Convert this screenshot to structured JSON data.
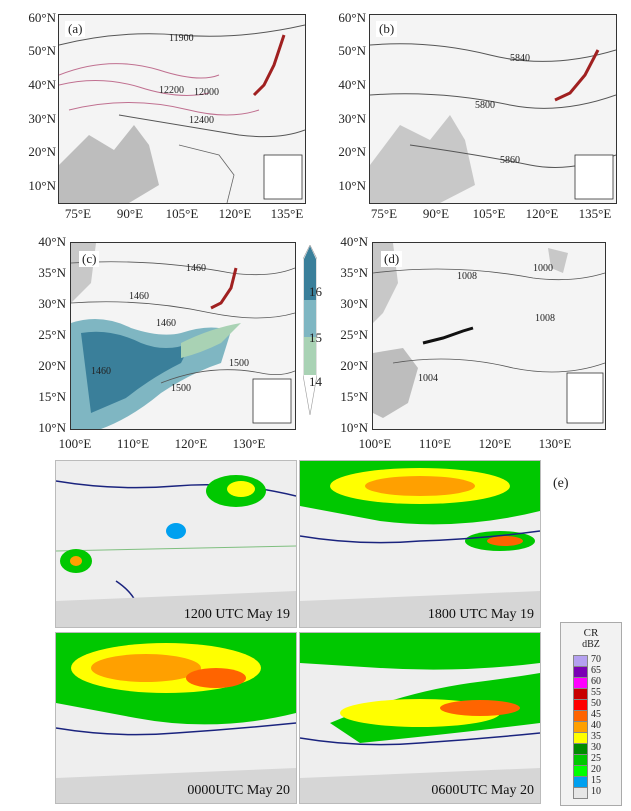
{
  "panels": {
    "a": {
      "label": "(a)",
      "contours": [
        "11900",
        "12000",
        "12200",
        "12400"
      ]
    },
    "b": {
      "label": "(b)",
      "contours": [
        "5840",
        "5800",
        "5860"
      ]
    },
    "c": {
      "label": "(c)",
      "contours": [
        "1460",
        "1460",
        "1460",
        "1460",
        "1500",
        "1500"
      ]
    },
    "d": {
      "label": "(d)",
      "contours": [
        "1008",
        "1000",
        "1008",
        "1004"
      ]
    }
  },
  "axes_top": {
    "lat_labels": [
      "60°N",
      "50°N",
      "40°N",
      "30°N",
      "20°N",
      "10°N"
    ],
    "lon_labels": [
      "75°E",
      "90°E",
      "105°E",
      "120°E",
      "135°E"
    ]
  },
  "axes_mid": {
    "lat_labels": [
      "40°N",
      "35°N",
      "30°N",
      "25°N",
      "20°N",
      "15°N",
      "10°N"
    ],
    "lon_labels": [
      "100°E",
      "110°E",
      "120°E",
      "130°E"
    ]
  },
  "colorbar_c": {
    "labels": [
      "16",
      "15",
      "14"
    ]
  },
  "radar": {
    "label": "(e)",
    "times": [
      "1200 UTC May 19",
      "1800 UTC May 19",
      "0000UTC May 20",
      "0600UTC May 20"
    ],
    "colorbar_title_1": "CR",
    "colorbar_title_2": "dBZ",
    "levels": [
      {
        "v": "70",
        "c": "#b4a0f0"
      },
      {
        "v": "65",
        "c": "#7a00b4"
      },
      {
        "v": "60",
        "c": "#ff00ff"
      },
      {
        "v": "55",
        "c": "#c80000"
      },
      {
        "v": "50",
        "c": "#ff0000"
      },
      {
        "v": "45",
        "c": "#ff6400"
      },
      {
        "v": "40",
        "c": "#ffa000"
      },
      {
        "v": "35",
        "c": "#ffff00"
      },
      {
        "v": "30",
        "c": "#008c00"
      },
      {
        "v": "25",
        "c": "#00c800"
      },
      {
        "v": "20",
        "c": "#00ff00"
      },
      {
        "v": "15",
        "c": "#00a0f0"
      },
      {
        "v": "10",
        "c": "#e6e6e6"
      }
    ]
  }
}
